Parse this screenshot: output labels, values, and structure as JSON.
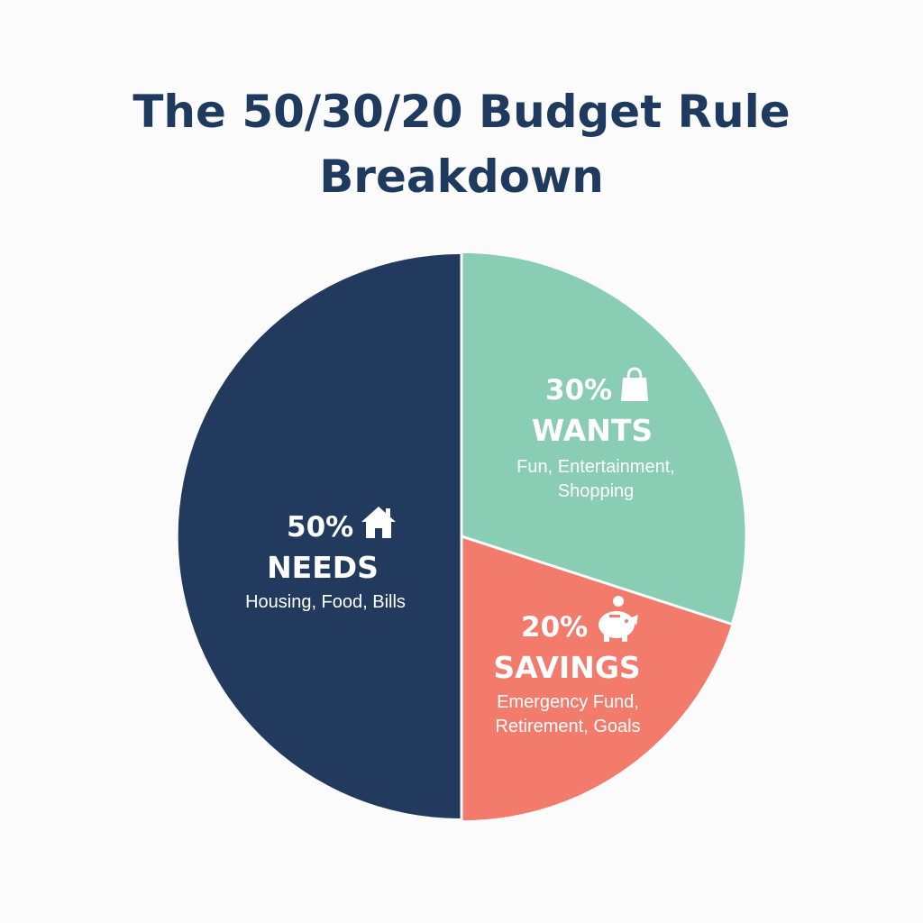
{
  "chart_data": {
    "type": "pie",
    "title": "The 50/30/20 Budget Rule Breakdown",
    "title_lines": [
      "The 50/30/20 Budget Rule",
      "Breakdown"
    ],
    "slices": [
      {
        "label": "NEEDS",
        "percent_label": "50%",
        "value": 50,
        "description_lines": [
          "Housing, Food, Bills"
        ],
        "color": "#213a5e",
        "icon": "house-icon"
      },
      {
        "label": "WANTS",
        "percent_label": "30%",
        "value": 30,
        "description_lines": [
          "Fun, Entertainment,",
          "Shopping"
        ],
        "color": "#88cdb4",
        "icon": "shopping-bag-icon"
      },
      {
        "label": "SAVINGS",
        "percent_label": "20%",
        "value": 20,
        "description_lines": [
          "Emergency Fund,",
          "Retirement, Goals"
        ],
        "color": "#f27b6b",
        "icon": "piggy-bank-icon"
      }
    ],
    "legend": "none",
    "grid": false
  },
  "colors": {
    "title": "#1f3a5f",
    "background": "#fbfbfb",
    "separator": "#ffffff"
  }
}
